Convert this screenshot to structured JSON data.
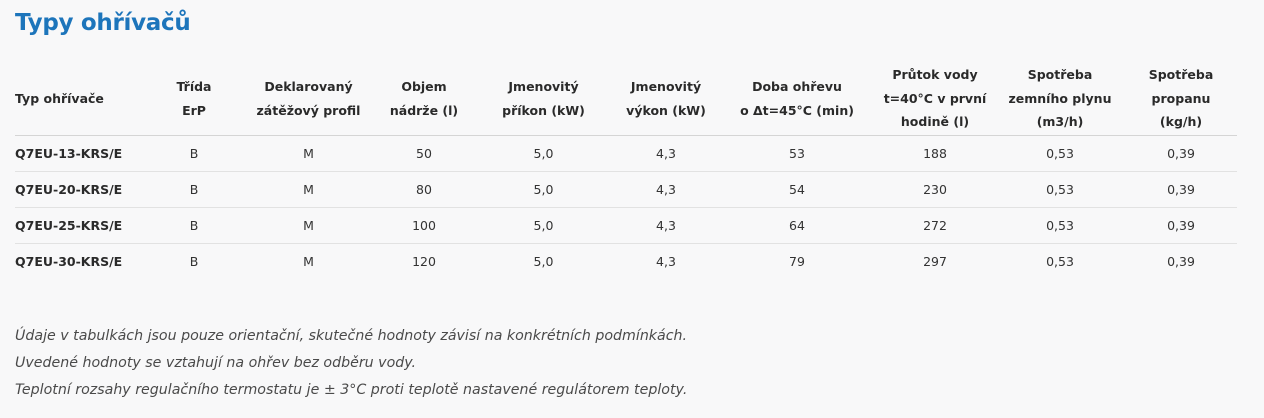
{
  "title": "Typy ohřívačů",
  "table": {
    "headers": [
      [
        "Typ ohřívače"
      ],
      [
        "Třída",
        "ErP"
      ],
      [
        "Deklarovaný",
        "zátěžový profil"
      ],
      [
        "Objem",
        "nádrže (l)"
      ],
      [
        "Jmenovitý",
        "příkon (kW)"
      ],
      [
        "Jmenovitý",
        "výkon (kW)"
      ],
      [
        "Doba ohřevu",
        "o Δt=45°C (min)"
      ],
      [
        "Průtok vody",
        "t=40°C v první",
        "hodině (l)"
      ],
      [
        "Spotřeba",
        "zemního plynu",
        "(m3/h)"
      ],
      [
        "Spotřeba",
        "propanu",
        "(kg/h)"
      ]
    ],
    "rows": [
      [
        "Q7EU-13-KRS/E",
        "B",
        "M",
        "50",
        "5,0",
        "4,3",
        "53",
        "188",
        "0,53",
        "0,39"
      ],
      [
        "Q7EU-20-KRS/E",
        "B",
        "M",
        "80",
        "5,0",
        "4,3",
        "54",
        "230",
        "0,53",
        "0,39"
      ],
      [
        "Q7EU-25-KRS/E",
        "B",
        "M",
        "100",
        "5,0",
        "4,3",
        "64",
        "272",
        "0,53",
        "0,39"
      ],
      [
        "Q7EU-30-KRS/E",
        "B",
        "M",
        "120",
        "5,0",
        "4,3",
        "79",
        "297",
        "0,53",
        "0,39"
      ]
    ]
  },
  "notes": [
    "Údaje v tabulkách jsou pouze orientační, skutečné hodnoty závisí na konkrétních podmínkách.",
    "Uvedené hodnoty se vztahují na ohřev bez odběru vody.",
    "Teplotní rozsahy regulačního termostatu je ± 3°C proti teplotě nastavené regulátorem teploty."
  ],
  "colors": {
    "title": "#1d75bb",
    "text": "#333333",
    "background": "#f8f8f9",
    "divider": "#e2e2e2"
  }
}
